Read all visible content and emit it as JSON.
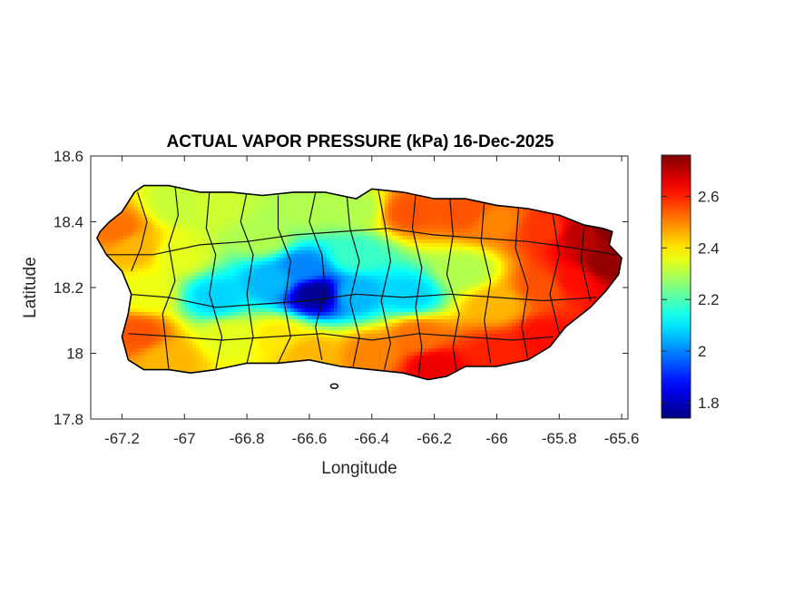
{
  "chart_data": {
    "type": "heatmap",
    "title": "ACTUAL VAPOR PRESSURE (kPa) 16-Dec-2025",
    "xlabel": "Longitude",
    "ylabel": "Latitude",
    "xlim": [
      -67.3,
      -65.58
    ],
    "ylim": [
      17.8,
      18.6
    ],
    "x_ticks": [
      -67.2,
      -67,
      -66.8,
      -66.6,
      -66.4,
      -66.2,
      -66,
      -65.8,
      -65.6
    ],
    "x_tick_labels": [
      "-67.2",
      "-67",
      "-66.8",
      "-66.6",
      "-66.4",
      "-66.2",
      "-66",
      "-65.8",
      "-65.6"
    ],
    "y_ticks": [
      17.8,
      18,
      18.2,
      18.4,
      18.6
    ],
    "y_tick_labels": [
      "17.8",
      "18",
      "18.2",
      "18.4",
      "18.6"
    ],
    "colorbar": {
      "colormap": "jet",
      "range": [
        1.74,
        2.76
      ],
      "ticks": [
        1.8,
        2,
        2.2,
        2.4,
        2.6
      ],
      "tick_labels": [
        "1.8",
        "2",
        "2.2",
        "2.4",
        "2.6"
      ],
      "colors": [
        "#00008f",
        "#0000ff",
        "#00ffff",
        "#ffff00",
        "#ff0000",
        "#800000"
      ]
    },
    "grid": false,
    "regional_values": [
      {
        "lon": -67.22,
        "lat": 18.38,
        "value": 2.52
      },
      {
        "lon": -67.15,
        "lat": 18.32,
        "value": 2.45
      },
      {
        "lon": -67.12,
        "lat": 18.18,
        "value": 2.36
      },
      {
        "lon": -67.15,
        "lat": 18.06,
        "value": 2.55
      },
      {
        "lon": -67.05,
        "lat": 17.98,
        "value": 2.45
      },
      {
        "lon": -67.02,
        "lat": 18.45,
        "value": 2.32
      },
      {
        "lon": -67.02,
        "lat": 18.3,
        "value": 2.35
      },
      {
        "lon": -66.9,
        "lat": 18.45,
        "value": 2.33
      },
      {
        "lon": -66.9,
        "lat": 18.17,
        "value": 2.08
      },
      {
        "lon": -66.85,
        "lat": 18.05,
        "value": 2.35
      },
      {
        "lon": -66.75,
        "lat": 18.35,
        "value": 2.3
      },
      {
        "lon": -66.72,
        "lat": 18.22,
        "value": 2.05
      },
      {
        "lon": -66.7,
        "lat": 18.05,
        "value": 2.4
      },
      {
        "lon": -66.6,
        "lat": 18.44,
        "value": 2.3
      },
      {
        "lon": -66.62,
        "lat": 18.26,
        "value": 2.0
      },
      {
        "lon": -66.58,
        "lat": 18.18,
        "value": 1.76
      },
      {
        "lon": -66.6,
        "lat": 18.0,
        "value": 2.45
      },
      {
        "lon": -66.45,
        "lat": 18.44,
        "value": 2.3
      },
      {
        "lon": -66.45,
        "lat": 18.3,
        "value": 2.18
      },
      {
        "lon": -66.45,
        "lat": 18.18,
        "value": 2.05
      },
      {
        "lon": -66.4,
        "lat": 18.0,
        "value": 2.5
      },
      {
        "lon": -66.28,
        "lat": 18.43,
        "value": 2.55
      },
      {
        "lon": -66.28,
        "lat": 18.18,
        "value": 2.08
      },
      {
        "lon": -66.25,
        "lat": 18.05,
        "value": 2.52
      },
      {
        "lon": -66.2,
        "lat": 17.96,
        "value": 2.65
      },
      {
        "lon": -66.1,
        "lat": 18.43,
        "value": 2.55
      },
      {
        "lon": -66.1,
        "lat": 18.25,
        "value": 2.3
      },
      {
        "lon": -66.0,
        "lat": 18.4,
        "value": 2.5
      },
      {
        "lon": -66.0,
        "lat": 18.15,
        "value": 2.45
      },
      {
        "lon": -66.0,
        "lat": 18.0,
        "value": 2.6
      },
      {
        "lon": -65.85,
        "lat": 18.38,
        "value": 2.58
      },
      {
        "lon": -65.85,
        "lat": 18.2,
        "value": 2.55
      },
      {
        "lon": -65.85,
        "lat": 18.05,
        "value": 2.62
      },
      {
        "lon": -65.72,
        "lat": 18.36,
        "value": 2.7
      },
      {
        "lon": -65.75,
        "lat": 18.22,
        "value": 2.62
      },
      {
        "lon": -65.65,
        "lat": 18.38,
        "value": 2.75
      },
      {
        "lon": -65.65,
        "lat": 18.27,
        "value": 2.74
      }
    ]
  }
}
